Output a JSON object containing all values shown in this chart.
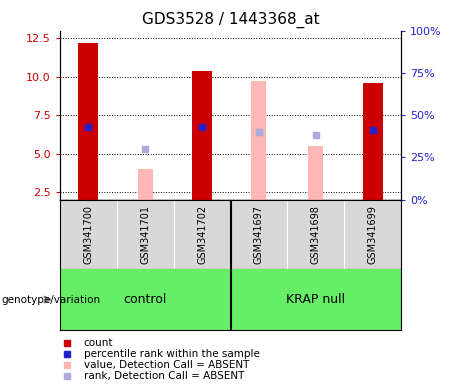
{
  "title": "GDS3528 / 1443368_at",
  "samples": [
    "GSM341700",
    "GSM341701",
    "GSM341702",
    "GSM341697",
    "GSM341698",
    "GSM341699"
  ],
  "count_values": [
    12.2,
    null,
    10.35,
    null,
    null,
    9.6
  ],
  "count_absent": [
    null,
    4.0,
    null,
    9.7,
    5.5,
    null
  ],
  "percentile_present": [
    43,
    null,
    43,
    null,
    null,
    41
  ],
  "percentile_absent": [
    null,
    30,
    null,
    40,
    38,
    null
  ],
  "ylim_left": [
    2.0,
    13.0
  ],
  "ylim_right": [
    0,
    100
  ],
  "yticks_left": [
    2.5,
    5.0,
    7.5,
    10.0,
    12.5
  ],
  "yticks_right": [
    0,
    25,
    50,
    75,
    100
  ],
  "bar_width": 0.35,
  "count_color": "#cc0000",
  "count_absent_color": "#ffb6b6",
  "percentile_color": "#2222cc",
  "percentile_absent_color": "#aaaadd",
  "title_fontsize": 11,
  "genotype_label": "genotype/variation",
  "background_color": "#ffffff",
  "left_tick_color": "#cc0000",
  "right_tick_color": "#2222cc",
  "group1_name": "control",
  "group2_name": "KRAP null",
  "group_bg": "#66ee66",
  "cell_bg": "#d8d8d8",
  "legend_items": [
    {
      "color": "#cc0000",
      "label": "count"
    },
    {
      "color": "#2222cc",
      "label": "percentile rank within the sample"
    },
    {
      "color": "#ffb6b6",
      "label": "value, Detection Call = ABSENT"
    },
    {
      "color": "#aaaadd",
      "label": "rank, Detection Call = ABSENT"
    }
  ]
}
